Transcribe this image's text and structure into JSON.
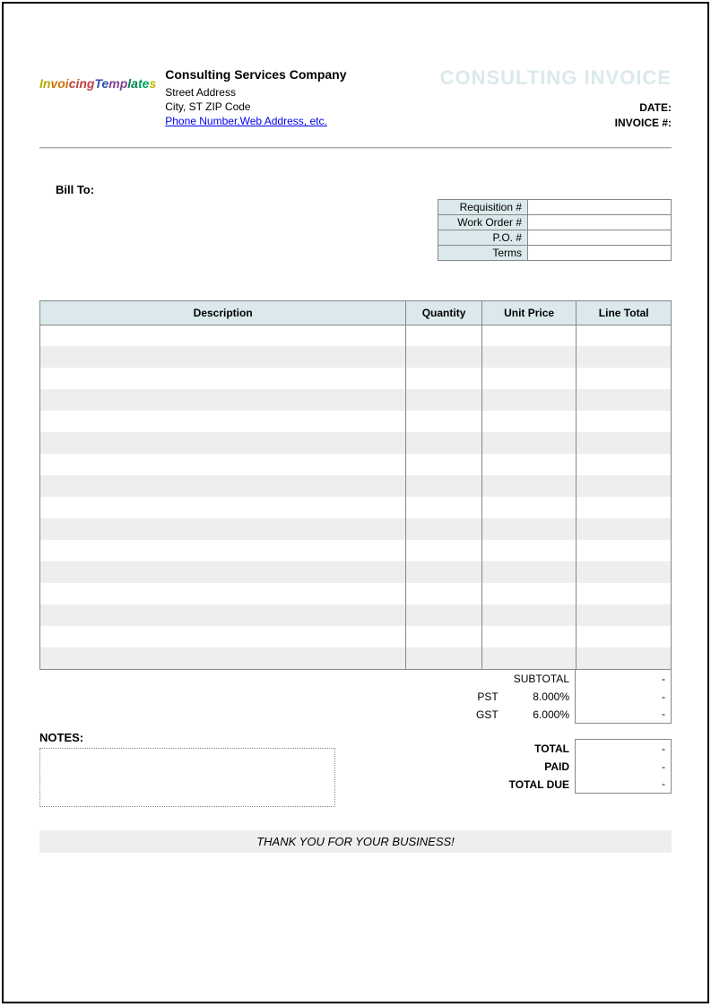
{
  "header": {
    "company_name": "Consulting Services Company",
    "street": "Street Address",
    "city_line": "City, ST  ZIP Code",
    "contact_link": "Phone Number,Web Address, etc.",
    "invoice_title": "CONSULTING INVOICE",
    "date_label": "DATE:",
    "invoice_num_label": "INVOICE #:",
    "logo_text": "InvoicingTemplates"
  },
  "bill_to": {
    "label": "Bill To:"
  },
  "ref_box": {
    "rows": [
      {
        "label": "Requisition #",
        "value": ""
      },
      {
        "label": "Work Order #",
        "value": ""
      },
      {
        "label": "P.O. #",
        "value": ""
      },
      {
        "label": "Terms",
        "value": ""
      }
    ]
  },
  "items": {
    "columns": {
      "description": "Description",
      "quantity": "Quantity",
      "unit_price": "Unit Price",
      "line_total": "Line Total"
    },
    "row_count": 16,
    "stripe_color": "#eeeeee",
    "header_bg": "#dbe9ec",
    "border_color": "#888888"
  },
  "summary": {
    "subtotal": {
      "label": "SUBTOTAL",
      "value": "-"
    },
    "pst": {
      "label": "PST",
      "rate": "8.000%",
      "value": "-"
    },
    "gst": {
      "label": "GST",
      "rate": "6.000%",
      "value": "-"
    },
    "total": {
      "label": "TOTAL",
      "value": "-"
    },
    "paid": {
      "label": "PAID",
      "value": "-"
    },
    "total_due": {
      "label": "TOTAL DUE",
      "value": "-"
    }
  },
  "notes": {
    "label": "NOTES:"
  },
  "footer": {
    "thanks": "THANK YOU FOR YOUR BUSINESS!"
  },
  "colors": {
    "header_tint": "#dbe9ec",
    "stripe": "#eeeeee",
    "title_faded": "#dbe9ec",
    "link": "#0000ee"
  }
}
